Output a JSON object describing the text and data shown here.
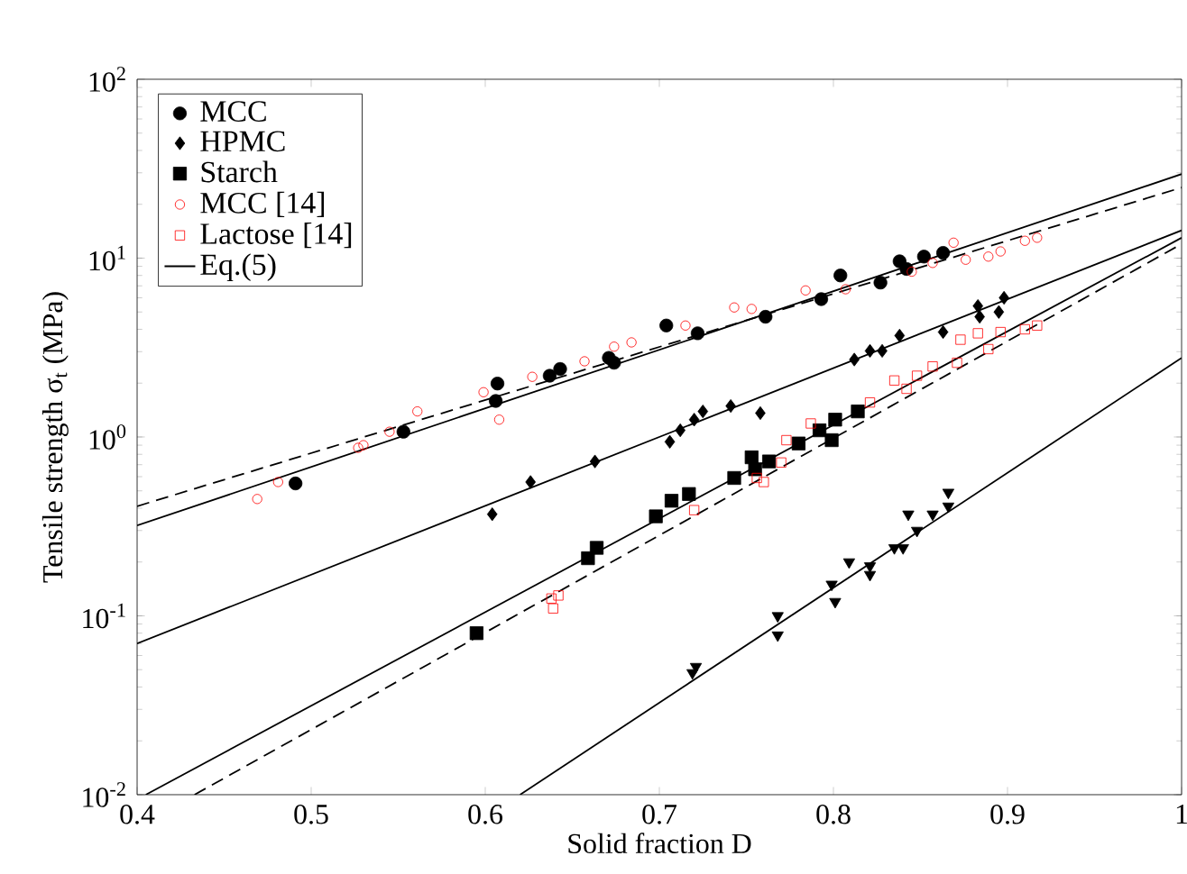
{
  "chart_data": {
    "type": "scatter",
    "xlabel": "Solid fraction  D",
    "ylabel": "Tensile strength σ$_{t}$  (MPa)",
    "log": "y",
    "grid": false,
    "legend": "top left",
    "xlim": [
      0.4,
      1
    ],
    "xticks": [
      0.4,
      0.5,
      0.6,
      0.7,
      0.8,
      0.9,
      1
    ],
    "ylim": [
      0.01,
      100
    ],
    "yticks": [
      {
        "value": 0.01,
        "label": "10$^{-2}$"
      },
      {
        "value": 0.1,
        "label": "10$^{-1}$"
      },
      {
        "value": 1,
        "label": "10$^{0}$"
      },
      {
        "value": 10,
        "label": "10$^{1}$"
      },
      {
        "value": 100,
        "label": "10$^{2}$"
      }
    ],
    "series": [
      {
        "name": "MCC",
        "marker": "circle",
        "color": "#000000",
        "x": [
          0.491,
          0.553,
          0.607,
          0.606,
          0.637,
          0.643,
          0.671,
          0.674,
          0.704,
          0.722,
          0.761,
          0.793,
          0.804,
          0.827,
          0.838,
          0.842,
          0.852,
          0.863
        ],
        "values": [
          0.55,
          1.07,
          1.99,
          1.59,
          2.2,
          2.4,
          2.77,
          2.6,
          4.2,
          3.8,
          4.7,
          5.9,
          8.0,
          7.3,
          9.6,
          8.7,
          10.2,
          10.7
        ]
      },
      {
        "name": "HPMC",
        "marker": "diamond",
        "color": "#000000",
        "x": [
          0.604,
          0.626,
          0.663,
          0.706,
          0.712,
          0.72,
          0.725,
          0.741,
          0.758,
          0.812,
          0.821,
          0.828,
          0.838,
          0.863,
          0.883,
          0.884,
          0.895,
          0.898
        ],
        "values": [
          0.37,
          0.56,
          0.73,
          0.94,
          1.09,
          1.25,
          1.39,
          1.49,
          1.36,
          2.71,
          3.03,
          3.03,
          3.69,
          3.86,
          5.4,
          4.7,
          5.0,
          6.0
        ]
      },
      {
        "name": "Starch",
        "marker": "square",
        "color": "#000000",
        "x": [
          0.595,
          0.664,
          0.659,
          0.698,
          0.707,
          0.717,
          0.743,
          0.753,
          0.755,
          0.763,
          0.78,
          0.799,
          0.792,
          0.801,
          0.814
        ],
        "values": [
          0.08,
          0.24,
          0.21,
          0.36,
          0.44,
          0.48,
          0.59,
          0.77,
          0.66,
          0.73,
          0.92,
          0.96,
          1.09,
          1.25,
          1.39
        ]
      },
      {
        "marker": "triangle",
        "color": "#000000",
        "x": [
          0.719,
          0.721,
          0.768,
          0.768,
          0.799,
          0.801,
          0.809,
          0.821,
          0.821,
          0.835,
          0.84,
          0.843,
          0.848,
          0.857,
          0.866,
          0.866
        ],
        "values": [
          0.048,
          0.052,
          0.1,
          0.078,
          0.15,
          0.12,
          0.2,
          0.19,
          0.17,
          0.24,
          0.24,
          0.37,
          0.3,
          0.37,
          0.41,
          0.49
        ]
      },
      {
        "name": "MCC [14]",
        "marker": "circle",
        "color": "#ff0000",
        "x": [
          0.469,
          0.481,
          0.527,
          0.53,
          0.545,
          0.561,
          0.599,
          0.608,
          0.627,
          0.657,
          0.684,
          0.674,
          0.715,
          0.743,
          0.753,
          0.784,
          0.807,
          0.845,
          0.857,
          0.869,
          0.876,
          0.889,
          0.896,
          0.91,
          0.917
        ],
        "values": [
          0.45,
          0.56,
          0.87,
          0.9,
          1.07,
          1.39,
          1.78,
          1.25,
          2.17,
          2.65,
          3.38,
          3.2,
          4.2,
          5.3,
          5.2,
          6.6,
          6.7,
          8.4,
          9.4,
          12.2,
          9.8,
          10.2,
          10.9,
          12.5,
          13.0
        ]
      },
      {
        "name": "Lactose [14]",
        "marker": "square",
        "color": "#ff0000",
        "x": [
          0.638,
          0.639,
          0.642,
          0.72,
          0.756,
          0.76,
          0.77,
          0.773,
          0.787,
          0.821,
          0.835,
          0.842,
          0.848,
          0.857,
          0.871,
          0.873,
          0.883,
          0.889,
          0.896,
          0.91,
          0.917
        ],
        "values": [
          0.125,
          0.11,
          0.13,
          0.39,
          0.59,
          0.56,
          0.72,
          0.96,
          1.19,
          1.56,
          2.07,
          1.86,
          2.2,
          2.48,
          2.6,
          3.5,
          3.8,
          3.1,
          3.86,
          4.0,
          4.2
        ]
      },
      {
        "name": "Eq.(5)",
        "type": "line",
        "line_style": "solid",
        "color": "#000000",
        "x": [
          0.4,
          1
        ],
        "values": [
          0.32,
          29.5
        ]
      },
      {
        "type": "line",
        "line_style": "solid",
        "color": "#000000",
        "x": [
          0.4,
          1
        ],
        "values": [
          0.07,
          14.3
        ]
      },
      {
        "type": "line",
        "line_style": "solid",
        "color": "#000000",
        "x": [
          0.405,
          1
        ],
        "values": [
          0.01,
          13
        ]
      },
      {
        "type": "line",
        "line_style": "solid",
        "color": "#000000",
        "x": [
          0.62,
          1
        ],
        "values": [
          0.01,
          2.77
        ]
      },
      {
        "type": "line",
        "line_style": "dashed",
        "color": "#000000",
        "x": [
          0.4,
          1
        ],
        "values": [
          0.41,
          24.8
        ]
      },
      {
        "type": "line",
        "line_style": "dashed",
        "color": "#000000",
        "x": [
          0.433,
          1
        ],
        "values": [
          0.01,
          12
        ]
      }
    ]
  }
}
